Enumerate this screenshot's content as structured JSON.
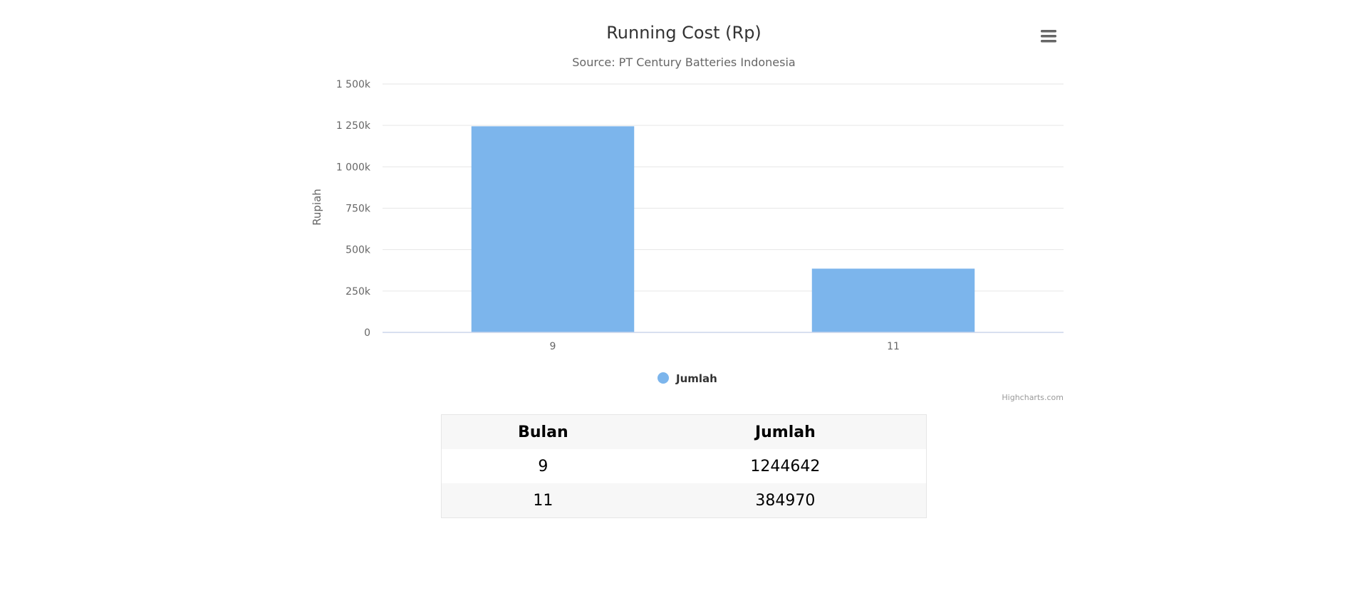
{
  "chart_data": {
    "type": "bar",
    "title": "Running Cost (Rp)",
    "subtitle": "Source: PT Century Batteries Indonesia",
    "xlabel": "",
    "ylabel": "Rupiah",
    "categories": [
      "9",
      "11"
    ],
    "series": [
      {
        "name": "Jumlah",
        "values": [
          1244642,
          384970
        ]
      }
    ],
    "ylim": [
      0,
      1500000
    ],
    "yticks": [
      {
        "value": 0,
        "label": "0"
      },
      {
        "value": 250000,
        "label": "250k"
      },
      {
        "value": 500000,
        "label": "500k"
      },
      {
        "value": 750000,
        "label": "750k"
      },
      {
        "value": 1000000,
        "label": "1 000k"
      },
      {
        "value": 1250000,
        "label": "1 250k"
      },
      {
        "value": 1500000,
        "label": "1 500k"
      }
    ],
    "grid": true,
    "legend_position": "bottom",
    "bar_color": "#7cb5ec",
    "credits": "Highcharts.com"
  },
  "menu": {
    "icon": "hamburger-menu-icon"
  },
  "table": {
    "headers": [
      "Bulan",
      "Jumlah"
    ],
    "rows": [
      [
        "9",
        "1244642"
      ],
      [
        "11",
        "384970"
      ]
    ]
  }
}
